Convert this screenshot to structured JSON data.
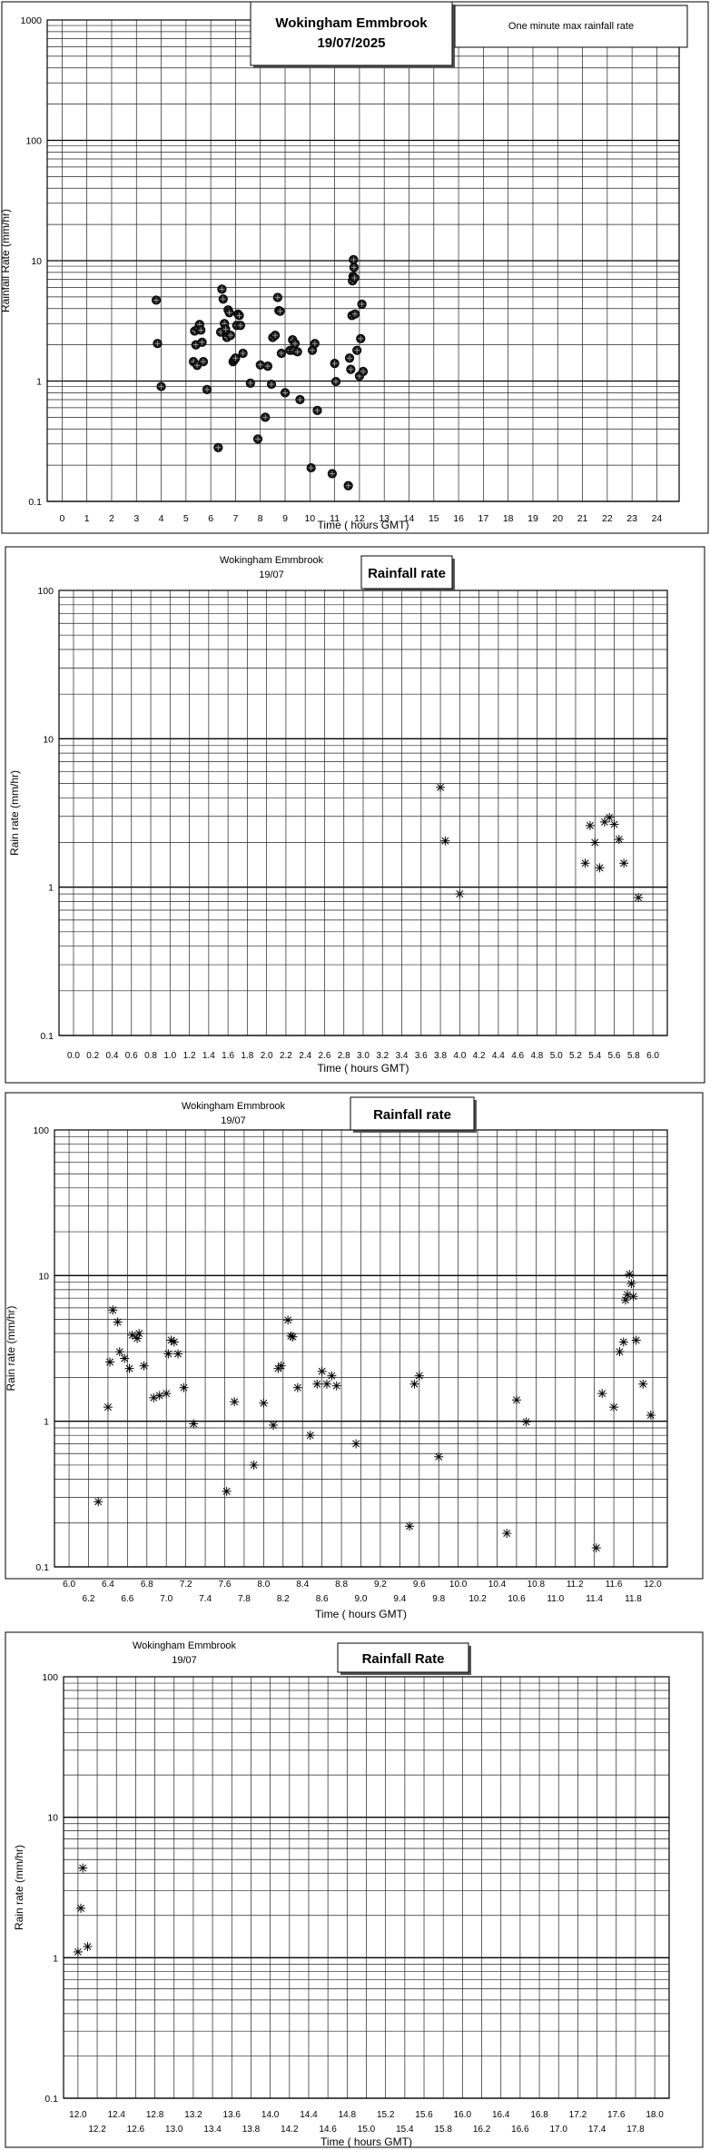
{
  "chart_data": [
    {
      "type": "scatter",
      "title": "Wokingham Emmbrook",
      "subtitle": "19/07/2025",
      "legend": "One minute max rainfall rate",
      "xlabel": "Time ( hours GMT)",
      "ylabel": "Rainfall Rate (mm/hr)",
      "log_y": true,
      "xlim": [
        -0.6,
        24.9
      ],
      "ylim": [
        0.1,
        1000
      ],
      "x_ticks": [
        0,
        1,
        2,
        3,
        4,
        5,
        6,
        7,
        8,
        9,
        10,
        11,
        12,
        13,
        14,
        15,
        16,
        17,
        18,
        19,
        20,
        21,
        22,
        23,
        24
      ],
      "x_tick_labels": [
        "0",
        "1",
        "2",
        "3",
        "4",
        "5",
        "6",
        "7",
        "8",
        "9",
        "10",
        "11",
        "12",
        "13",
        "14",
        "15",
        "16",
        "17",
        "18",
        "19",
        "20",
        "21",
        "22",
        "23",
        "24"
      ],
      "y_tick_labels": [
        "0.1",
        "1",
        "10",
        "100",
        "1000"
      ],
      "marker": "circle",
      "points": [
        [
          3.8,
          4.7
        ],
        [
          3.85,
          2.05
        ],
        [
          4.0,
          0.9
        ],
        [
          5.3,
          1.45
        ],
        [
          5.35,
          2.6
        ],
        [
          5.4,
          2.0
        ],
        [
          5.45,
          1.35
        ],
        [
          5.5,
          2.75
        ],
        [
          5.55,
          2.95
        ],
        [
          5.6,
          2.65
        ],
        [
          5.65,
          2.1
        ],
        [
          5.7,
          1.45
        ],
        [
          5.85,
          0.85
        ],
        [
          6.3,
          0.28
        ],
        [
          6.4,
          2.55
        ],
        [
          6.45,
          5.8
        ],
        [
          6.5,
          4.8
        ],
        [
          6.55,
          3.0
        ],
        [
          6.6,
          2.7
        ],
        [
          6.65,
          2.3
        ],
        [
          6.7,
          3.9
        ],
        [
          6.75,
          3.7
        ],
        [
          6.8,
          2.4
        ],
        [
          6.9,
          1.45
        ],
        [
          6.95,
          1.5
        ],
        [
          7.0,
          1.55
        ],
        [
          7.05,
          2.9
        ],
        [
          7.1,
          3.6
        ],
        [
          7.15,
          3.5
        ],
        [
          7.2,
          2.9
        ],
        [
          7.3,
          1.7
        ],
        [
          7.6,
          0.96
        ],
        [
          7.9,
          0.33
        ],
        [
          8.0,
          1.36
        ],
        [
          8.2,
          0.5
        ],
        [
          8.3,
          1.33
        ],
        [
          8.45,
          0.94
        ],
        [
          8.5,
          2.3
        ],
        [
          8.6,
          2.4
        ],
        [
          8.7,
          4.95
        ],
        [
          8.75,
          3.85
        ],
        [
          8.8,
          3.8
        ],
        [
          8.85,
          1.7
        ],
        [
          9.0,
          0.8
        ],
        [
          9.2,
          1.8
        ],
        [
          9.3,
          2.2
        ],
        [
          9.35,
          1.8
        ],
        [
          9.4,
          2.05
        ],
        [
          9.5,
          1.75
        ],
        [
          9.6,
          0.7
        ],
        [
          10.05,
          0.19
        ],
        [
          10.1,
          1.8
        ],
        [
          10.2,
          2.05
        ],
        [
          10.3,
          0.57
        ],
        [
          10.9,
          0.17
        ],
        [
          11.0,
          1.4
        ],
        [
          11.05,
          0.99
        ],
        [
          11.55,
          0.135
        ],
        [
          11.6,
          1.55
        ],
        [
          11.65,
          1.25
        ],
        [
          11.7,
          3.5
        ],
        [
          11.72,
          6.8
        ],
        [
          11.74,
          7.4
        ],
        [
          11.76,
          10.2
        ],
        [
          11.78,
          8.8
        ],
        [
          11.8,
          7.2
        ],
        [
          11.82,
          3.6
        ],
        [
          11.9,
          1.8
        ],
        [
          12.0,
          1.1
        ],
        [
          12.05,
          2.25
        ],
        [
          12.1,
          4.35
        ],
        [
          12.15,
          1.2
        ]
      ]
    },
    {
      "type": "scatter",
      "title": "Rainfall rate",
      "subtitle": "Wokingham Emmbrook",
      "date": "19/07",
      "xlabel": "Time ( hours GMT)",
      "ylabel": "Rain rate (mm/hr)",
      "log_y": true,
      "xlim": [
        -0.15,
        6.15
      ],
      "ylim": [
        0.1,
        100
      ],
      "x_ticks": [
        0,
        0.2,
        0.4,
        0.6,
        0.8,
        1.0,
        1.2,
        1.4,
        1.6,
        1.8,
        2.0,
        2.2,
        2.4,
        2.6,
        2.8,
        3.0,
        3.2,
        3.4,
        3.6,
        3.8,
        4.0,
        4.2,
        4.4,
        4.6,
        4.8,
        5.0,
        5.2,
        5.4,
        5.6,
        5.8,
        6.0
      ],
      "x_tick_labels": [
        "0.0",
        "0.2",
        "0.4",
        "0.6",
        "0.8",
        "1.0",
        "1.2",
        "1.4",
        "1.6",
        "1.8",
        "2.0",
        "2.2",
        "2.4",
        "2.6",
        "2.8",
        "3.0",
        "3.2",
        "3.4",
        "3.6",
        "3.8",
        "4.0",
        "4.2",
        "4.4",
        "4.6",
        "4.8",
        "5.0",
        "5.2",
        "5.4",
        "5.6",
        "5.8",
        "6.0"
      ],
      "y_tick_labels": [
        "0.1",
        "1",
        "10",
        "100"
      ],
      "marker": "asterisk",
      "points": [
        [
          3.8,
          4.7
        ],
        [
          3.85,
          2.05
        ],
        [
          4.0,
          0.9
        ],
        [
          5.3,
          1.45
        ],
        [
          5.35,
          2.6
        ],
        [
          5.4,
          2.0
        ],
        [
          5.45,
          1.35
        ],
        [
          5.5,
          2.75
        ],
        [
          5.55,
          2.95
        ],
        [
          5.6,
          2.65
        ],
        [
          5.65,
          2.1
        ],
        [
          5.7,
          1.45
        ],
        [
          5.85,
          0.85
        ]
      ]
    },
    {
      "type": "scatter",
      "title": "Rainfall rate",
      "subtitle": "Wokingham Emmbrook",
      "date": "19/07",
      "xlabel": "Time ( hours GMT)",
      "ylabel": "Rain rate (mm/hr)",
      "log_y": true,
      "xlim": [
        5.85,
        12.15
      ],
      "ylim": [
        0.1,
        100
      ],
      "x_ticks": [
        6.0,
        6.2,
        6.4,
        6.6,
        6.8,
        7.0,
        7.2,
        7.4,
        7.6,
        7.8,
        8.0,
        8.2,
        8.4,
        8.6,
        8.8,
        9.0,
        9.2,
        9.4,
        9.6,
        9.8,
        10.0,
        10.2,
        10.4,
        10.6,
        10.8,
        11.0,
        11.2,
        11.4,
        11.6,
        11.8,
        12.0
      ],
      "x_tick_labels": [
        "6.0",
        "6.2",
        "6.4",
        "6.6",
        "6.8",
        "7.0",
        "7.2",
        "7.4",
        "7.6",
        "7.8",
        "8.0",
        "8.2",
        "8.4",
        "8.6",
        "8.8",
        "9.0",
        "9.2",
        "9.4",
        "9.6",
        "9.8",
        "10.0",
        "10.2",
        "10.4",
        "10.6",
        "10.8",
        "11.0",
        "11.2",
        "11.4",
        "11.6",
        "11.8",
        "12.0"
      ],
      "y_tick_labels": [
        "0.1",
        "1",
        "10",
        "100"
      ],
      "marker": "asterisk",
      "points": [
        [
          6.3,
          0.28
        ],
        [
          6.4,
          1.25
        ],
        [
          6.42,
          2.55
        ],
        [
          6.45,
          5.8
        ],
        [
          6.5,
          4.8
        ],
        [
          6.52,
          3.0
        ],
        [
          6.57,
          2.7
        ],
        [
          6.62,
          2.3
        ],
        [
          6.65,
          3.9
        ],
        [
          6.7,
          3.7
        ],
        [
          6.72,
          4.0
        ],
        [
          6.77,
          2.4
        ],
        [
          6.87,
          1.45
        ],
        [
          6.93,
          1.5
        ],
        [
          7.0,
          1.55
        ],
        [
          7.02,
          2.9
        ],
        [
          7.05,
          3.6
        ],
        [
          7.08,
          3.5
        ],
        [
          7.12,
          2.9
        ],
        [
          7.18,
          1.7
        ],
        [
          7.28,
          0.96
        ],
        [
          7.62,
          0.33
        ],
        [
          7.7,
          1.36
        ],
        [
          7.9,
          0.5
        ],
        [
          8.0,
          1.33
        ],
        [
          8.1,
          0.94
        ],
        [
          8.15,
          2.3
        ],
        [
          8.18,
          2.4
        ],
        [
          8.25,
          4.95
        ],
        [
          8.28,
          3.85
        ],
        [
          8.3,
          3.8
        ],
        [
          8.35,
          1.7
        ],
        [
          8.48,
          0.8
        ],
        [
          8.55,
          1.8
        ],
        [
          8.6,
          2.2
        ],
        [
          8.65,
          1.8
        ],
        [
          8.7,
          2.05
        ],
        [
          8.75,
          1.75
        ],
        [
          8.95,
          0.7
        ],
        [
          9.5,
          0.19
        ],
        [
          9.55,
          1.8
        ],
        [
          9.6,
          2.05
        ],
        [
          9.8,
          0.57
        ],
        [
          10.5,
          0.17
        ],
        [
          10.6,
          1.4
        ],
        [
          10.7,
          0.99
        ],
        [
          11.42,
          0.135
        ],
        [
          11.48,
          1.55
        ],
        [
          11.6,
          1.25
        ],
        [
          11.66,
          3.0
        ],
        [
          11.7,
          3.5
        ],
        [
          11.72,
          6.8
        ],
        [
          11.74,
          7.4
        ],
        [
          11.76,
          10.2
        ],
        [
          11.78,
          8.8
        ],
        [
          11.8,
          7.2
        ],
        [
          11.83,
          3.6
        ],
        [
          11.9,
          1.8
        ],
        [
          11.98,
          1.1
        ]
      ]
    },
    {
      "type": "scatter",
      "title": "Rainfall Rate",
      "subtitle": "Wokingham Emmbrook",
      "date": "19/07",
      "xlabel": "Time ( hours GMT)",
      "ylabel": "Rain rate (mm/hr)",
      "log_y": true,
      "xlim": [
        11.85,
        18.15
      ],
      "ylim": [
        0.1,
        100
      ],
      "x_ticks": [
        12.0,
        12.2,
        12.4,
        12.6,
        12.8,
        13.0,
        13.2,
        13.4,
        13.6,
        13.8,
        14.0,
        14.2,
        14.4,
        14.6,
        14.8,
        15.0,
        15.2,
        15.4,
        15.6,
        15.8,
        16.0,
        16.2,
        16.4,
        16.6,
        16.8,
        17.0,
        17.2,
        17.4,
        17.6,
        17.8,
        18.0
      ],
      "x_tick_labels": [
        "12.0",
        "12.2",
        "12.4",
        "12.6",
        "12.8",
        "13.0",
        "13.2",
        "13.4",
        "13.6",
        "13.8",
        "14.0",
        "14.2",
        "14.4",
        "14.6",
        "14.8",
        "15.0",
        "15.2",
        "15.4",
        "15.6",
        "15.8",
        "16.0",
        "16.2",
        "16.4",
        "16.6",
        "16.8",
        "17.0",
        "17.2",
        "17.4",
        "17.6",
        "17.8",
        "18.0"
      ],
      "y_tick_labels": [
        "0.1",
        "1",
        "10",
        "100"
      ],
      "marker": "asterisk",
      "points": [
        [
          12.0,
          1.1
        ],
        [
          12.03,
          2.25
        ],
        [
          12.05,
          4.35
        ],
        [
          12.1,
          1.2
        ]
      ]
    }
  ]
}
